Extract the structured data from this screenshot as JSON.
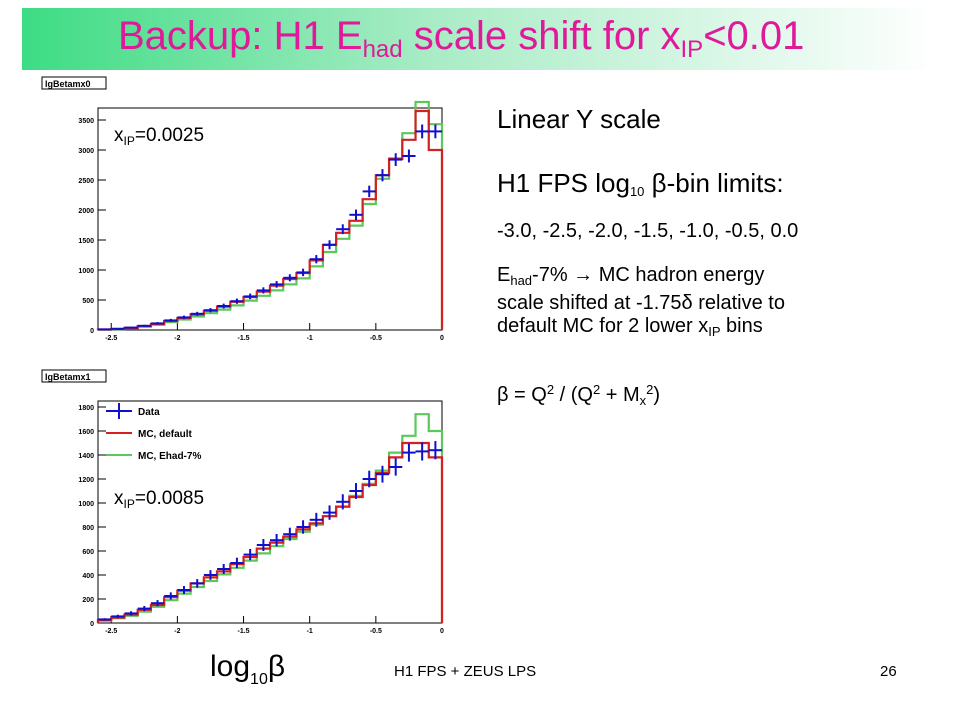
{
  "slide": {
    "title_main": "Backup: H1 E",
    "title_sub_had": "had",
    "title_mid": " scale shift for x",
    "title_sub_ip": "IP",
    "title_end": "<0.01",
    "footer": "H1 FPS + ZEUS LPS",
    "page_number": "26",
    "colors": {
      "title": "#e0189a",
      "band_start": "#3ddc84",
      "band_end": "#ffffff"
    }
  },
  "notes": {
    "linear": "Linear Y scale",
    "limits_pre": "H1 FPS log",
    "limits_sub": "10",
    "limits_post": " β-bin limits:",
    "bins": "-3.0, -2.5, -2.0, -1.5, -1.0, -0.5, 0.0",
    "ehad_E": "E",
    "ehad_sub": "had",
    "ehad_rest": "-7%  → MC hadron energy",
    "ehad_line2": "scale shifted at -1.75δ relative to",
    "ehad_line3_pre": "default MC for 2 lower x",
    "ehad_line3_sub": "IP",
    "ehad_line3_post": " bins",
    "beta_a": "β = Q",
    "beta_sup1": "2",
    "beta_b": " / (Q",
    "beta_sup2": "2",
    "beta_c": " + M",
    "beta_subx": "x",
    "beta_sup3": "2",
    "beta_d": ")"
  },
  "xaxis": {
    "label": "log",
    "label_sub": "10",
    "label_post": "β"
  },
  "chart_data": [
    {
      "type": "histogram",
      "name": "lgBetamx0",
      "annotation_pre": "x",
      "annotation_sub": "IP",
      "annotation_post": "=0.0025",
      "xlim": [
        -2.6,
        0
      ],
      "ylim": [
        0,
        3700
      ],
      "xticks": [
        -2.5,
        -2,
        -1.5,
        -1,
        -0.5,
        0
      ],
      "xtick_labels": [
        "-2.5",
        "-2",
        "-1.5",
        "-1",
        "-0.5",
        "0"
      ],
      "yticks": [
        0,
        500,
        1000,
        1500,
        2000,
        2500,
        3000,
        3500
      ],
      "ytick_labels": [
        "0",
        "500",
        "1000",
        "1500",
        "2000",
        "2500",
        "3000",
        "3500"
      ],
      "bin_edges": [
        -2.6,
        -2.5,
        -2.4,
        -2.3,
        -2.2,
        -2.1,
        -2.0,
        -1.9,
        -1.8,
        -1.7,
        -1.6,
        -1.5,
        -1.4,
        -1.3,
        -1.2,
        -1.1,
        -1.0,
        -0.9,
        -0.8,
        -0.7,
        -0.6,
        -0.5,
        -0.4,
        -0.3,
        -0.2,
        -0.1,
        0.0
      ],
      "series": [
        {
          "name": "Data",
          "kind": "points",
          "color": "#1010cc",
          "values": [
            10,
            20,
            40,
            70,
            110,
            160,
            210,
            270,
            330,
            400,
            480,
            560,
            660,
            760,
            870,
            960,
            1180,
            1420,
            1680,
            1920,
            2310,
            2580,
            2840,
            2900,
            3310,
            3310
          ],
          "errors": [
            8,
            10,
            14,
            18,
            22,
            26,
            30,
            33,
            36,
            40,
            44,
            47,
            51,
            55,
            59,
            62,
            69,
            75,
            82,
            88,
            96,
            102,
            107,
            108,
            115,
            115
          ]
        },
        {
          "name": "MC, default",
          "kind": "step",
          "color": "#d42020",
          "values": [
            8,
            18,
            35,
            65,
            100,
            150,
            200,
            260,
            320,
            390,
            470,
            550,
            640,
            740,
            850,
            950,
            1160,
            1420,
            1620,
            1820,
            2180,
            2580,
            2850,
            3170,
            3650,
            3000
          ]
        },
        {
          "name": "MC, Ehad-7%",
          "kind": "step",
          "color": "#5cc85c",
          "values": [
            6,
            14,
            28,
            55,
            88,
            130,
            175,
            225,
            280,
            340,
            410,
            490,
            570,
            660,
            760,
            860,
            1060,
            1300,
            1520,
            1740,
            2100,
            2520,
            2860,
            3280,
            3800,
            3430
          ]
        }
      ]
    },
    {
      "type": "histogram",
      "name": "lgBetamx1",
      "annotation_pre": "x",
      "annotation_sub": "IP",
      "annotation_post": "=0.0085",
      "xlim": [
        -2.6,
        0
      ],
      "ylim": [
        0,
        1850
      ],
      "xticks": [
        -2.5,
        -2,
        -1.5,
        -1,
        -0.5,
        0
      ],
      "xtick_labels": [
        "-2.5",
        "-2",
        "-1.5",
        "-1",
        "-0.5",
        "0"
      ],
      "yticks": [
        0,
        200,
        400,
        600,
        800,
        1000,
        1200,
        1400,
        1600,
        1800
      ],
      "ytick_labels": [
        "0",
        "200",
        "400",
        "600",
        "800",
        "1000",
        "1200",
        "1400",
        "1600",
        "1800"
      ],
      "legend": {
        "position": "top-left"
      },
      "bin_edges": [
        -2.6,
        -2.5,
        -2.4,
        -2.3,
        -2.2,
        -2.1,
        -2.0,
        -1.9,
        -1.8,
        -1.7,
        -1.6,
        -1.5,
        -1.4,
        -1.3,
        -1.2,
        -1.1,
        -1.0,
        -0.9,
        -0.8,
        -0.7,
        -0.6,
        -0.5,
        -0.4,
        -0.3,
        -0.2,
        -0.1,
        0.0
      ],
      "series": [
        {
          "name": "Data",
          "kind": "points",
          "color": "#1010cc",
          "values": [
            30,
            55,
            80,
            120,
            165,
            225,
            275,
            330,
            400,
            450,
            500,
            570,
            650,
            690,
            740,
            800,
            860,
            920,
            1010,
            1100,
            1200,
            1240,
            1300,
            1420,
            1430,
            1440
          ],
          "errors": [
            10,
            14,
            18,
            22,
            26,
            30,
            33,
            36,
            40,
            42,
            44,
            47,
            50,
            52,
            54,
            56,
            58,
            60,
            63,
            66,
            69,
            70,
            72,
            75,
            76,
            76
          ]
        },
        {
          "name": "MC, default",
          "kind": "step",
          "color": "#d42020",
          "values": [
            25,
            45,
            70,
            110,
            150,
            215,
            270,
            330,
            380,
            430,
            490,
            550,
            620,
            670,
            720,
            780,
            830,
            890,
            970,
            1050,
            1150,
            1250,
            1380,
            1500,
            1500,
            1380
          ]
        },
        {
          "name": "MC, Ehad-7%",
          "kind": "step",
          "color": "#5cc85c",
          "values": [
            20,
            40,
            60,
            95,
            135,
            190,
            245,
            300,
            350,
            405,
            460,
            520,
            580,
            640,
            700,
            760,
            820,
            890,
            970,
            1060,
            1160,
            1270,
            1420,
            1560,
            1740,
            1600
          ]
        }
      ]
    }
  ]
}
